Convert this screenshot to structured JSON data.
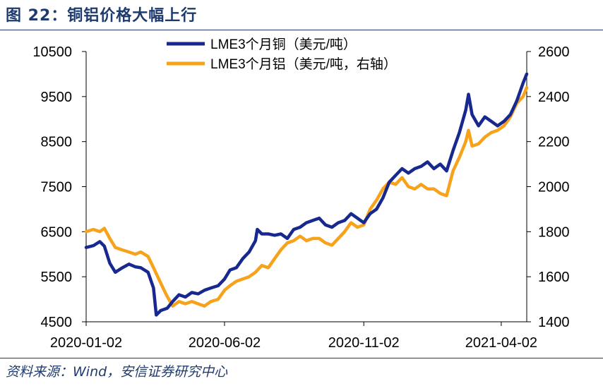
{
  "header": {
    "figure_label": "图 22：铜铝价格大幅上行"
  },
  "footer": {
    "source": "资料来源：Wind，安信证券研究中心"
  },
  "colors": {
    "copper": "#17288e",
    "aluminum": "#f7a21b",
    "title": "#1f3b6e"
  },
  "chart_data": {
    "type": "line",
    "title": "",
    "xlabel": "",
    "ylabel": "",
    "y_left": {
      "ylim": [
        4500,
        10500
      ],
      "ticks": [
        4500,
        5500,
        6500,
        7500,
        8500,
        9500,
        10500
      ],
      "tick_labels": [
        "4500",
        "5500",
        "6500",
        "7500",
        "8500",
        "9500",
        "10500"
      ]
    },
    "y_right": {
      "ylim": [
        1400,
        2600
      ],
      "ticks": [
        1400,
        1600,
        1800,
        2000,
        2200,
        2400,
        2600
      ],
      "tick_labels": [
        "1400",
        "1600",
        "1800",
        "2000",
        "2200",
        "2400",
        "2600"
      ]
    },
    "x_range": [
      "2020-01-02",
      "2021-04-30"
    ],
    "x_ticks": [
      "2020-01-02",
      "2020-06-02",
      "2020-11-02",
      "2021-04-02"
    ],
    "grid": false,
    "legend_position": "top-center",
    "series": [
      {
        "name": "LME3个月铜（美元/吨）",
        "axis": "left",
        "color": "#17288e",
        "points": [
          [
            "2020-01-02",
            6150
          ],
          [
            "2020-01-10",
            6190
          ],
          [
            "2020-01-17",
            6280
          ],
          [
            "2020-01-22",
            6180
          ],
          [
            "2020-01-28",
            5800
          ],
          [
            "2020-02-03",
            5600
          ],
          [
            "2020-02-10",
            5690
          ],
          [
            "2020-02-18",
            5780
          ],
          [
            "2020-02-25",
            5720
          ],
          [
            "2020-03-02",
            5700
          ],
          [
            "2020-03-10",
            5600
          ],
          [
            "2020-03-16",
            5250
          ],
          [
            "2020-03-19",
            4650
          ],
          [
            "2020-03-24",
            4750
          ],
          [
            "2020-03-31",
            4800
          ],
          [
            "2020-04-06",
            4950
          ],
          [
            "2020-04-13",
            5100
          ],
          [
            "2020-04-20",
            5050
          ],
          [
            "2020-04-27",
            5150
          ],
          [
            "2020-05-04",
            5120
          ],
          [
            "2020-05-11",
            5200
          ],
          [
            "2020-05-18",
            5250
          ],
          [
            "2020-05-26",
            5300
          ],
          [
            "2020-06-02",
            5450
          ],
          [
            "2020-06-08",
            5650
          ],
          [
            "2020-06-15",
            5700
          ],
          [
            "2020-06-22",
            5900
          ],
          [
            "2020-06-29",
            6050
          ],
          [
            "2020-07-06",
            6300
          ],
          [
            "2020-07-08",
            6550
          ],
          [
            "2020-07-13",
            6450
          ],
          [
            "2020-07-20",
            6450
          ],
          [
            "2020-07-27",
            6420
          ],
          [
            "2020-08-03",
            6450
          ],
          [
            "2020-08-10",
            6350
          ],
          [
            "2020-08-17",
            6550
          ],
          [
            "2020-08-24",
            6600
          ],
          [
            "2020-08-31",
            6700
          ],
          [
            "2020-09-07",
            6750
          ],
          [
            "2020-09-14",
            6800
          ],
          [
            "2020-09-21",
            6650
          ],
          [
            "2020-09-28",
            6600
          ],
          [
            "2020-10-05",
            6700
          ],
          [
            "2020-10-12",
            6750
          ],
          [
            "2020-10-19",
            6900
          ],
          [
            "2020-10-26",
            6800
          ],
          [
            "2020-11-02",
            6700
          ],
          [
            "2020-11-09",
            6900
          ],
          [
            "2020-11-16",
            7000
          ],
          [
            "2020-11-23",
            7250
          ],
          [
            "2020-11-30",
            7600
          ],
          [
            "2020-12-07",
            7750
          ],
          [
            "2020-12-14",
            7900
          ],
          [
            "2020-12-21",
            7800
          ],
          [
            "2020-12-28",
            7900
          ],
          [
            "2021-01-04",
            7950
          ],
          [
            "2021-01-11",
            8050
          ],
          [
            "2021-01-18",
            7900
          ],
          [
            "2021-01-25",
            8000
          ],
          [
            "2021-02-01",
            7850
          ],
          [
            "2021-02-08",
            8300
          ],
          [
            "2021-02-15",
            8700
          ],
          [
            "2021-02-22",
            9200
          ],
          [
            "2021-02-25",
            9550
          ],
          [
            "2021-03-01",
            9100
          ],
          [
            "2021-03-08",
            8850
          ],
          [
            "2021-03-15",
            9050
          ],
          [
            "2021-03-22",
            8950
          ],
          [
            "2021-03-29",
            8850
          ],
          [
            "2021-04-05",
            8950
          ],
          [
            "2021-04-12",
            9100
          ],
          [
            "2021-04-19",
            9400
          ],
          [
            "2021-04-26",
            9800
          ],
          [
            "2021-04-30",
            10000
          ]
        ]
      },
      {
        "name": "LME3个月铝（美元/吨，右轴）",
        "axis": "right",
        "color": "#f7a21b",
        "points": [
          [
            "2020-01-02",
            1800
          ],
          [
            "2020-01-10",
            1810
          ],
          [
            "2020-01-17",
            1800
          ],
          [
            "2020-01-22",
            1815
          ],
          [
            "2020-01-28",
            1770
          ],
          [
            "2020-02-03",
            1730
          ],
          [
            "2020-02-10",
            1720
          ],
          [
            "2020-02-18",
            1710
          ],
          [
            "2020-02-25",
            1700
          ],
          [
            "2020-03-02",
            1710
          ],
          [
            "2020-03-10",
            1690
          ],
          [
            "2020-03-16",
            1640
          ],
          [
            "2020-03-23",
            1580
          ],
          [
            "2020-03-30",
            1520
          ],
          [
            "2020-04-06",
            1470
          ],
          [
            "2020-04-13",
            1490
          ],
          [
            "2020-04-20",
            1480
          ],
          [
            "2020-04-27",
            1490
          ],
          [
            "2020-05-04",
            1480
          ],
          [
            "2020-05-11",
            1470
          ],
          [
            "2020-05-18",
            1490
          ],
          [
            "2020-05-26",
            1500
          ],
          [
            "2020-06-02",
            1540
          ],
          [
            "2020-06-08",
            1560
          ],
          [
            "2020-06-15",
            1580
          ],
          [
            "2020-06-22",
            1590
          ],
          [
            "2020-06-29",
            1600
          ],
          [
            "2020-07-06",
            1620
          ],
          [
            "2020-07-13",
            1650
          ],
          [
            "2020-07-20",
            1640
          ],
          [
            "2020-07-27",
            1680
          ],
          [
            "2020-08-03",
            1720
          ],
          [
            "2020-08-10",
            1750
          ],
          [
            "2020-08-17",
            1760
          ],
          [
            "2020-08-24",
            1780
          ],
          [
            "2020-08-31",
            1760
          ],
          [
            "2020-09-07",
            1770
          ],
          [
            "2020-09-14",
            1770
          ],
          [
            "2020-09-21",
            1750
          ],
          [
            "2020-09-28",
            1740
          ],
          [
            "2020-10-05",
            1770
          ],
          [
            "2020-10-12",
            1800
          ],
          [
            "2020-10-19",
            1840
          ],
          [
            "2020-10-26",
            1820
          ],
          [
            "2020-11-02",
            1830
          ],
          [
            "2020-11-09",
            1900
          ],
          [
            "2020-11-16",
            1940
          ],
          [
            "2020-11-23",
            1990
          ],
          [
            "2020-11-30",
            2020
          ],
          [
            "2020-12-07",
            2010
          ],
          [
            "2020-12-14",
            2040
          ],
          [
            "2020-12-21",
            2000
          ],
          [
            "2020-12-28",
            1990
          ],
          [
            "2021-01-04",
            2010
          ],
          [
            "2021-01-11",
            1990
          ],
          [
            "2021-01-18",
            1990
          ],
          [
            "2021-01-25",
            1970
          ],
          [
            "2021-02-01",
            1960
          ],
          [
            "2021-02-08",
            2070
          ],
          [
            "2021-02-15",
            2130
          ],
          [
            "2021-02-22",
            2200
          ],
          [
            "2021-02-25",
            2250
          ],
          [
            "2021-03-01",
            2180
          ],
          [
            "2021-03-08",
            2190
          ],
          [
            "2021-03-15",
            2220
          ],
          [
            "2021-03-22",
            2240
          ],
          [
            "2021-03-29",
            2250
          ],
          [
            "2021-04-05",
            2270
          ],
          [
            "2021-04-12",
            2310
          ],
          [
            "2021-04-19",
            2370
          ],
          [
            "2021-04-26",
            2400
          ],
          [
            "2021-04-30",
            2440
          ]
        ]
      }
    ]
  }
}
